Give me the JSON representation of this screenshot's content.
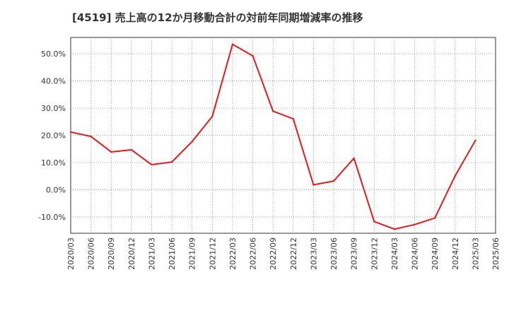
{
  "chart_data": {
    "type": "line",
    "title": "[4519]  売上高の12か月移動合計の対前年同期増減率の推移",
    "xlabel": "",
    "ylabel": "",
    "ylim": [
      -16,
      56
    ],
    "y_ticks": [
      -10,
      0,
      10,
      20,
      30,
      40,
      50
    ],
    "y_tick_labels": [
      "-10.0%",
      "0.0%",
      "10.0%",
      "20.0%",
      "30.0%",
      "40.0%",
      "50.0%"
    ],
    "categories": [
      "2020/03",
      "2020/06",
      "2020/09",
      "2020/12",
      "2021/03",
      "2021/06",
      "2021/09",
      "2021/12",
      "2022/03",
      "2022/06",
      "2022/09",
      "2022/12",
      "2023/03",
      "2023/06",
      "2023/09",
      "2023/12",
      "2024/03",
      "2024/06",
      "2024/09",
      "2024/12",
      "2025/03",
      "2025/06"
    ],
    "series": [
      {
        "name": "増減率",
        "color": "#e8191b",
        "values": [
          21.2,
          19.6,
          13.9,
          14.7,
          9.2,
          10.2,
          17.7,
          27.0,
          53.5,
          49.2,
          28.9,
          26.1,
          1.8,
          3.2,
          11.6,
          -11.7,
          -14.5,
          -12.8,
          -10.4,
          5.1,
          18.1,
          null
        ]
      }
    ],
    "grid": true
  }
}
